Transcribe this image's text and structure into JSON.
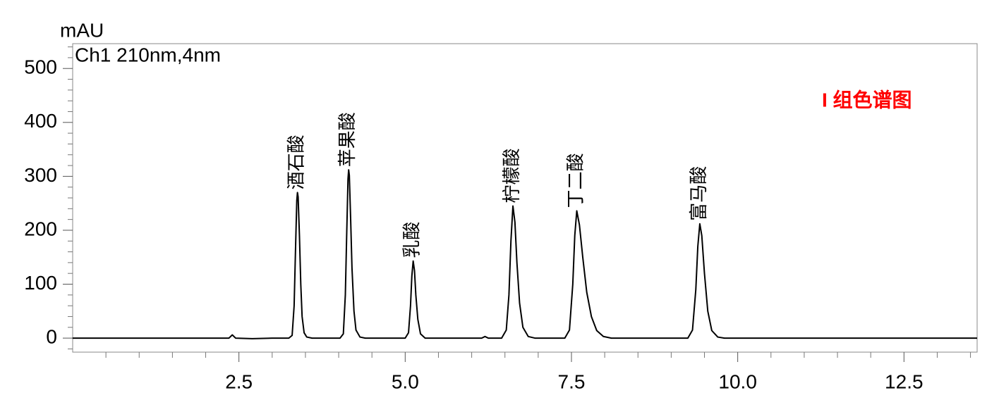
{
  "chart_data": {
    "type": "line",
    "y_unit": "mAU",
    "channel": "Ch1 210nm,4nm",
    "title": "I 组色谱图",
    "x": [
      0,
      2.35,
      2.4,
      2.45,
      2.7,
      3.0,
      3.25,
      3.3,
      3.33,
      3.35,
      3.37,
      3.38,
      3.39,
      3.41,
      3.43,
      3.45,
      3.48,
      3.52,
      3.6,
      4.02,
      4.07,
      4.1,
      4.12,
      4.14,
      4.15,
      4.16,
      4.18,
      4.2,
      4.23,
      4.26,
      4.32,
      4.4,
      5.0,
      5.05,
      5.08,
      5.1,
      5.12,
      5.14,
      5.16,
      5.19,
      5.23,
      5.3,
      6.15,
      6.2,
      6.25,
      6.45,
      6.52,
      6.56,
      6.59,
      6.62,
      6.65,
      6.68,
      6.72,
      6.77,
      6.85,
      6.95,
      7.4,
      7.47,
      7.52,
      7.55,
      7.58,
      7.62,
      7.67,
      7.73,
      7.8,
      7.88,
      7.98,
      8.1,
      9.25,
      9.32,
      9.37,
      9.4,
      9.43,
      9.46,
      9.5,
      9.55,
      9.61,
      9.7,
      9.8,
      13.6
    ],
    "series": [
      {
        "color": "#000000",
        "values": [
          0,
          0,
          6,
          0,
          -1,
          0,
          0,
          5,
          60,
          160,
          255,
          270,
          262,
          190,
          100,
          40,
          10,
          2,
          0,
          0,
          8,
          80,
          190,
          295,
          312,
          302,
          220,
          130,
          50,
          15,
          2,
          0,
          0,
          10,
          60,
          115,
          143,
          125,
          80,
          35,
          8,
          0,
          0,
          3,
          0,
          0,
          15,
          80,
          180,
          245,
          215,
          140,
          65,
          20,
          3,
          0,
          0,
          15,
          100,
          190,
          236,
          210,
          150,
          85,
          40,
          14,
          3,
          0,
          0,
          15,
          90,
          170,
          212,
          190,
          120,
          50,
          14,
          2,
          0,
          0
        ]
      }
    ],
    "annotations": [
      {
        "text": "酒石酸",
        "x": 3.38,
        "y": 270
      },
      {
        "text": "苹果酸",
        "x": 4.15,
        "y": 312
      },
      {
        "text": "乳酸",
        "x": 5.12,
        "y": 143
      },
      {
        "text": "柠檬酸",
        "x": 6.62,
        "y": 245
      },
      {
        "text": "丁二酸",
        "x": 7.58,
        "y": 236
      },
      {
        "text": "富马酸",
        "x": 9.43,
        "y": 212
      }
    ],
    "xlim": [
      0,
      13.6
    ],
    "ylim": [
      -26,
      546
    ],
    "xticks": [
      2.5,
      {
        "value": 5,
        "label": "5.0"
      },
      7.5,
      {
        "value": 10,
        "label": "10.0"
      },
      12.5
    ],
    "x_minor_ticks": [
      0.5,
      1,
      1.5,
      2,
      3,
      3.5,
      4,
      4.5,
      5.5,
      6,
      6.5,
      7,
      8,
      8.5,
      9,
      9.5,
      10.5,
      11,
      11.5,
      12,
      13,
      13.5
    ],
    "yticks": [
      0,
      100,
      200,
      300,
      400,
      500
    ],
    "y_minor_ticks": [
      20,
      40,
      60,
      80,
      120,
      140,
      160,
      180,
      220,
      240,
      260,
      280,
      320,
      340,
      360,
      380,
      420,
      440,
      460,
      480,
      520,
      540,
      -20
    ],
    "grid": false
  }
}
